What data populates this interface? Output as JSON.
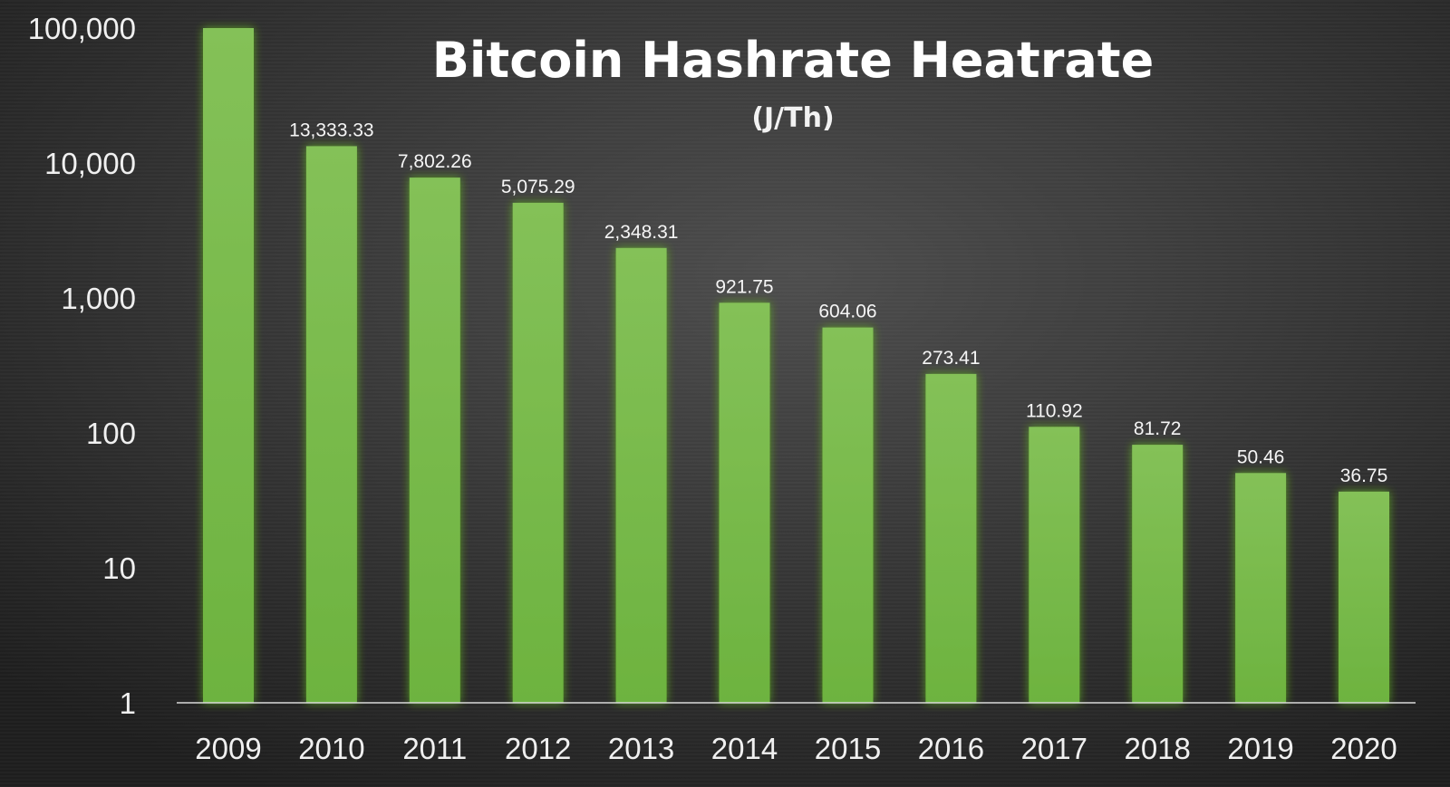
{
  "chart_data": {
    "type": "bar",
    "title": "Bitcoin Hashrate Heatrate",
    "subtitle": "(J/Th)",
    "xlabel": "",
    "ylabel": "",
    "yscale": "log",
    "ylim": [
      1,
      100000
    ],
    "grid": false,
    "legend": "none",
    "categories": [
      "2009",
      "2010",
      "2011",
      "2012",
      "2013",
      "2014",
      "2015",
      "2016",
      "2017",
      "2018",
      "2019",
      "2020"
    ],
    "values": [
      100000,
      13333.33,
      7802.26,
      5075.29,
      2348.31,
      921.75,
      604.06,
      273.41,
      110.92,
      81.72,
      50.46,
      36.75
    ],
    "data_labels": [
      "",
      "13,333.33",
      "7,802.26",
      "5,075.29",
      "2,348.31",
      "921.75",
      "604.06",
      "273.41",
      "110.92",
      "81.72",
      "50.46",
      "36.75"
    ],
    "yticks": [
      1,
      10,
      100,
      1000,
      10000,
      100000
    ],
    "ytick_labels": [
      "1",
      "10",
      "100",
      "1,000",
      "10,000",
      "100,000"
    ],
    "colors": {
      "bar": "#6db33f",
      "bar_light": "#84c158",
      "bar_glow": "#4f9a1f",
      "background_center": "#4a4a4a",
      "background_edge": "#1f1f1f",
      "axis_line": "#d9d9d9",
      "text": "#f0f0f0"
    }
  }
}
